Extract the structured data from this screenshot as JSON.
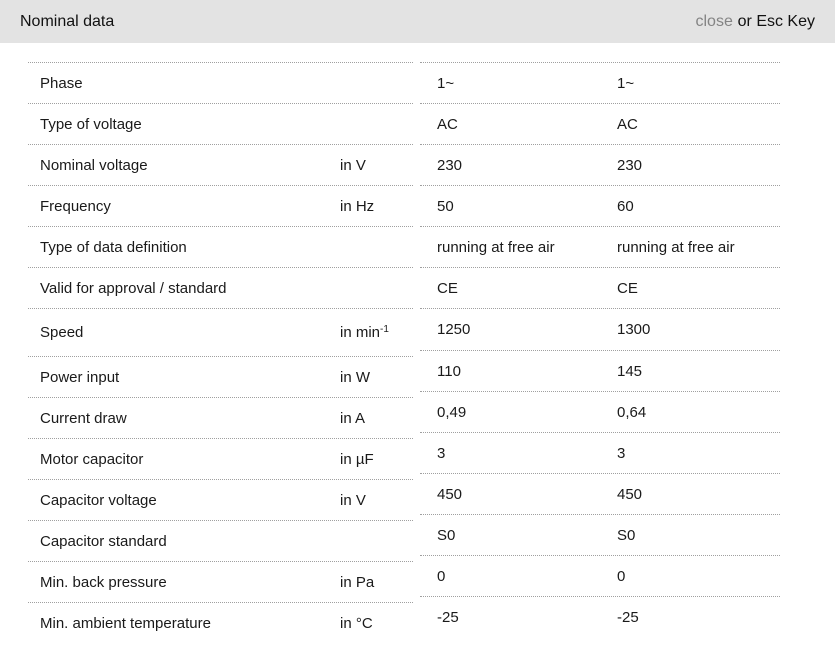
{
  "header": {
    "title": "Nominal data",
    "close_label": "close",
    "close_suffix": "or Esc Key"
  },
  "table": {
    "rows": [
      {
        "label": "Phase",
        "unit": "",
        "unit_sup": "",
        "values": [
          "1~",
          "1~"
        ]
      },
      {
        "label": "Type of voltage",
        "unit": "",
        "unit_sup": "",
        "values": [
          "AC",
          "AC"
        ]
      },
      {
        "label": "Nominal voltage",
        "unit": "in V",
        "unit_sup": "",
        "values": [
          "230",
          "230"
        ]
      },
      {
        "label": "Frequency",
        "unit": "in Hz",
        "unit_sup": "",
        "values": [
          "50",
          "60"
        ]
      },
      {
        "label": "Type of data definition",
        "unit": "",
        "unit_sup": "",
        "values": [
          "running at free air",
          "running at free air"
        ]
      },
      {
        "label": "Valid for approval / standard",
        "unit": "",
        "unit_sup": "",
        "values": [
          "CE",
          "CE"
        ]
      },
      {
        "label": "Speed",
        "unit": "in min",
        "unit_sup": "-1",
        "values": [
          "1250",
          "1300"
        ]
      },
      {
        "label": "Power input",
        "unit": "in W",
        "unit_sup": "",
        "values": [
          "110",
          "145"
        ]
      },
      {
        "label": "Current draw",
        "unit": "in A",
        "unit_sup": "",
        "values": [
          "0,49",
          "0,64"
        ]
      },
      {
        "label": "Motor capacitor",
        "unit": "in µF",
        "unit_sup": "",
        "values": [
          "3",
          "3"
        ]
      },
      {
        "label": "Capacitor voltage",
        "unit": "in V",
        "unit_sup": "",
        "values": [
          "450",
          "450"
        ]
      },
      {
        "label": "Capacitor standard",
        "unit": "",
        "unit_sup": "",
        "values": [
          "S0",
          "S0"
        ]
      },
      {
        "label": "Min. back pressure",
        "unit": "in Pa",
        "unit_sup": "",
        "values": [
          "0",
          "0"
        ]
      },
      {
        "label": "Min. ambient temperature",
        "unit": "in °C",
        "unit_sup": "",
        "values": [
          "-25",
          "-25"
        ]
      }
    ]
  },
  "colors": {
    "header_bg": "#e3e3e3",
    "close_link": "#848484",
    "divider": "#a0a0a0",
    "text": "#1a1a1a"
  }
}
